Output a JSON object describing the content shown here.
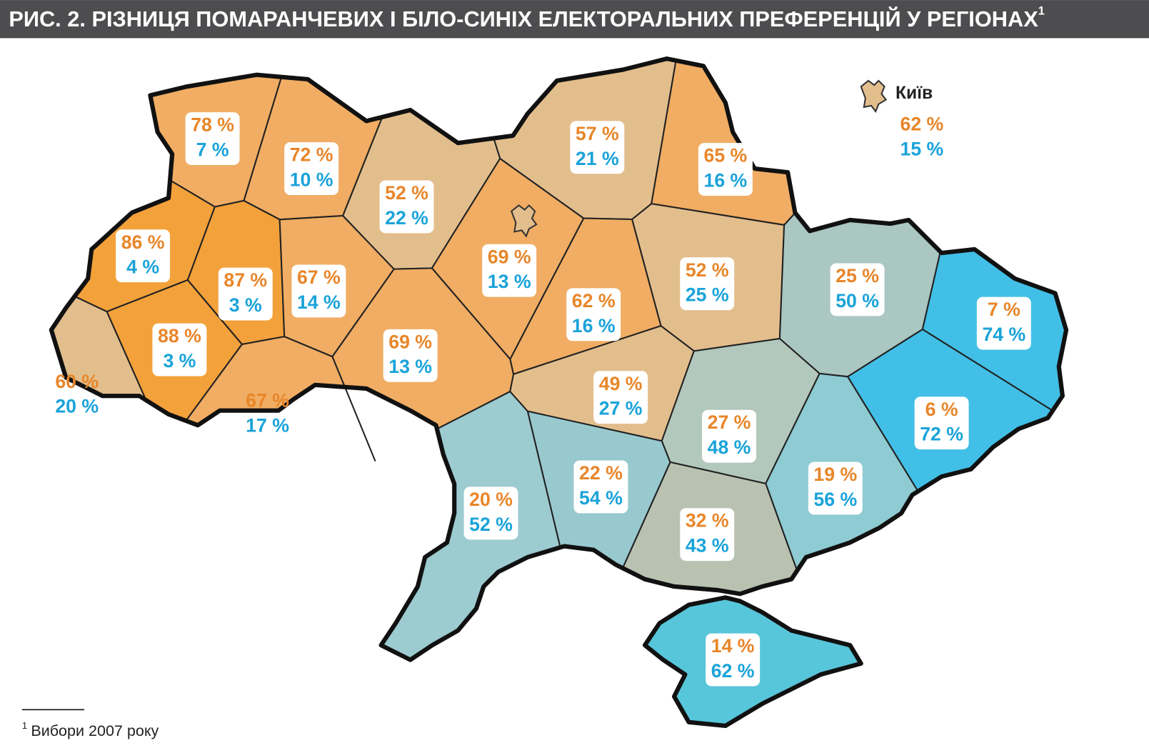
{
  "title": "РИС. 2. РІЗНИЦЯ ПОМАРАНЧЕВИХ І БІЛО-СИНІХ ЕЛЕКТОРАЛЬНИХ ПРЕФЕРЕНЦІЙ У РЕГІОНАХ",
  "title_note": "1",
  "regions": [
    {
      "orange": "78 %",
      "blue": "7 %"
    },
    {
      "orange": "72 %",
      "blue": "10 %"
    },
    {
      "orange": "52 %",
      "blue": "22 %"
    },
    {
      "orange": "69 %",
      "blue": "13 %"
    },
    {
      "orange": "57 %",
      "blue": "21 %"
    },
    {
      "orange": "65 %",
      "blue": "16 %"
    },
    {
      "orange": "86 %",
      "blue": "4 %"
    },
    {
      "orange": "87 %",
      "blue": "3 %"
    },
    {
      "orange": "88 %",
      "blue": "3 %"
    },
    {
      "orange": "60 %",
      "blue": "20 %"
    },
    {
      "orange": "67 %",
      "blue": "17 %"
    },
    {
      "orange": "67 %",
      "blue": "14 %"
    },
    {
      "orange": "69 %",
      "blue": "13 %"
    },
    {
      "orange": "62 %",
      "blue": "16 %"
    },
    {
      "orange": "52 %",
      "blue": "25 %"
    },
    {
      "orange": "25 %",
      "blue": "50 %"
    },
    {
      "orange": "7 %",
      "blue": "74 %"
    },
    {
      "orange": "6 %",
      "blue": "72 %"
    },
    {
      "orange": "49 %",
      "blue": "27 %"
    },
    {
      "orange": "27 %",
      "blue": "48 %"
    },
    {
      "orange": "19 %",
      "blue": "56 %"
    },
    {
      "orange": "32 %",
      "blue": "43 %"
    },
    {
      "orange": "22 %",
      "blue": "54 %"
    },
    {
      "orange": "20 %",
      "blue": "52 %"
    },
    {
      "orange": "14 %",
      "blue": "62 %"
    }
  ],
  "kyiv": {
    "name": "Київ",
    "orange": "62 %",
    "blue": "15 %"
  },
  "footnote": {
    "mark": "1",
    "text": "Вибори 2007 року"
  }
}
